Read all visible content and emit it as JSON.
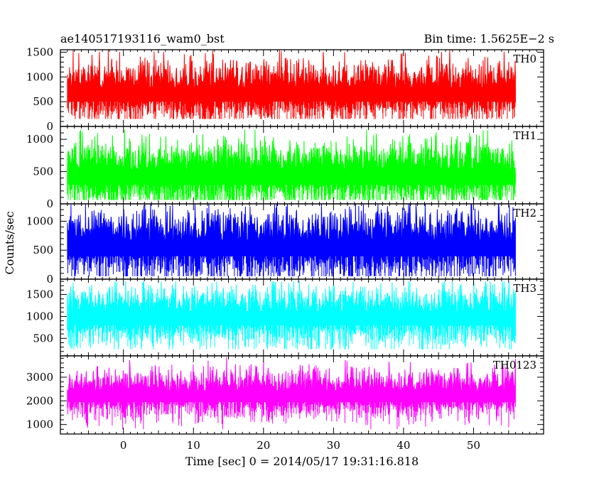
{
  "chart_data": {
    "type": "line",
    "title_left": "ae140517193116_wam0_bst",
    "title_right": "Bin time: 1.5625E−2 s",
    "xlabel": "Time [sec] 0 = 2014/05/17 19:31:16.818",
    "ylabel": "Counts/sec",
    "xlim": [
      -9,
      60
    ],
    "xticks": [
      0,
      10,
      20,
      30,
      40,
      50
    ],
    "data_x_range": [
      -8,
      56
    ],
    "grid": false,
    "panels": [
      {
        "name": "TH0",
        "color": "#ff0000",
        "ylim": [
          0,
          1550
        ],
        "yticks": [
          0,
          500,
          1000,
          1500
        ],
        "mean": 650,
        "spread": 330,
        "min_value": 150,
        "max_value": 1550
      },
      {
        "name": "TH1",
        "color": "#00ff00",
        "ylim": [
          0,
          1200
        ],
        "yticks": [
          0,
          500,
          1000
        ],
        "mean": 420,
        "spread": 280,
        "min_value": 60,
        "max_value": 1150
      },
      {
        "name": "TH2",
        "color": "#0000ff",
        "ylim": [
          0,
          1300
        ],
        "yticks": [
          0,
          500,
          1000
        ],
        "mean": 540,
        "spread": 320,
        "min_value": 50,
        "max_value": 1300
      },
      {
        "name": "TH3",
        "color": "#00ffff",
        "ylim": [
          100,
          1850
        ],
        "yticks": [
          500,
          1000,
          1500
        ],
        "mean": 960,
        "spread": 360,
        "min_value": 250,
        "max_value": 1800
      },
      {
        "name": "TH0123",
        "color": "#ff00ff",
        "ylim": [
          600,
          3900
        ],
        "yticks": [
          1000,
          2000,
          3000
        ],
        "mean": 2200,
        "spread": 560,
        "min_value": 800,
        "max_value": 3850
      }
    ]
  }
}
